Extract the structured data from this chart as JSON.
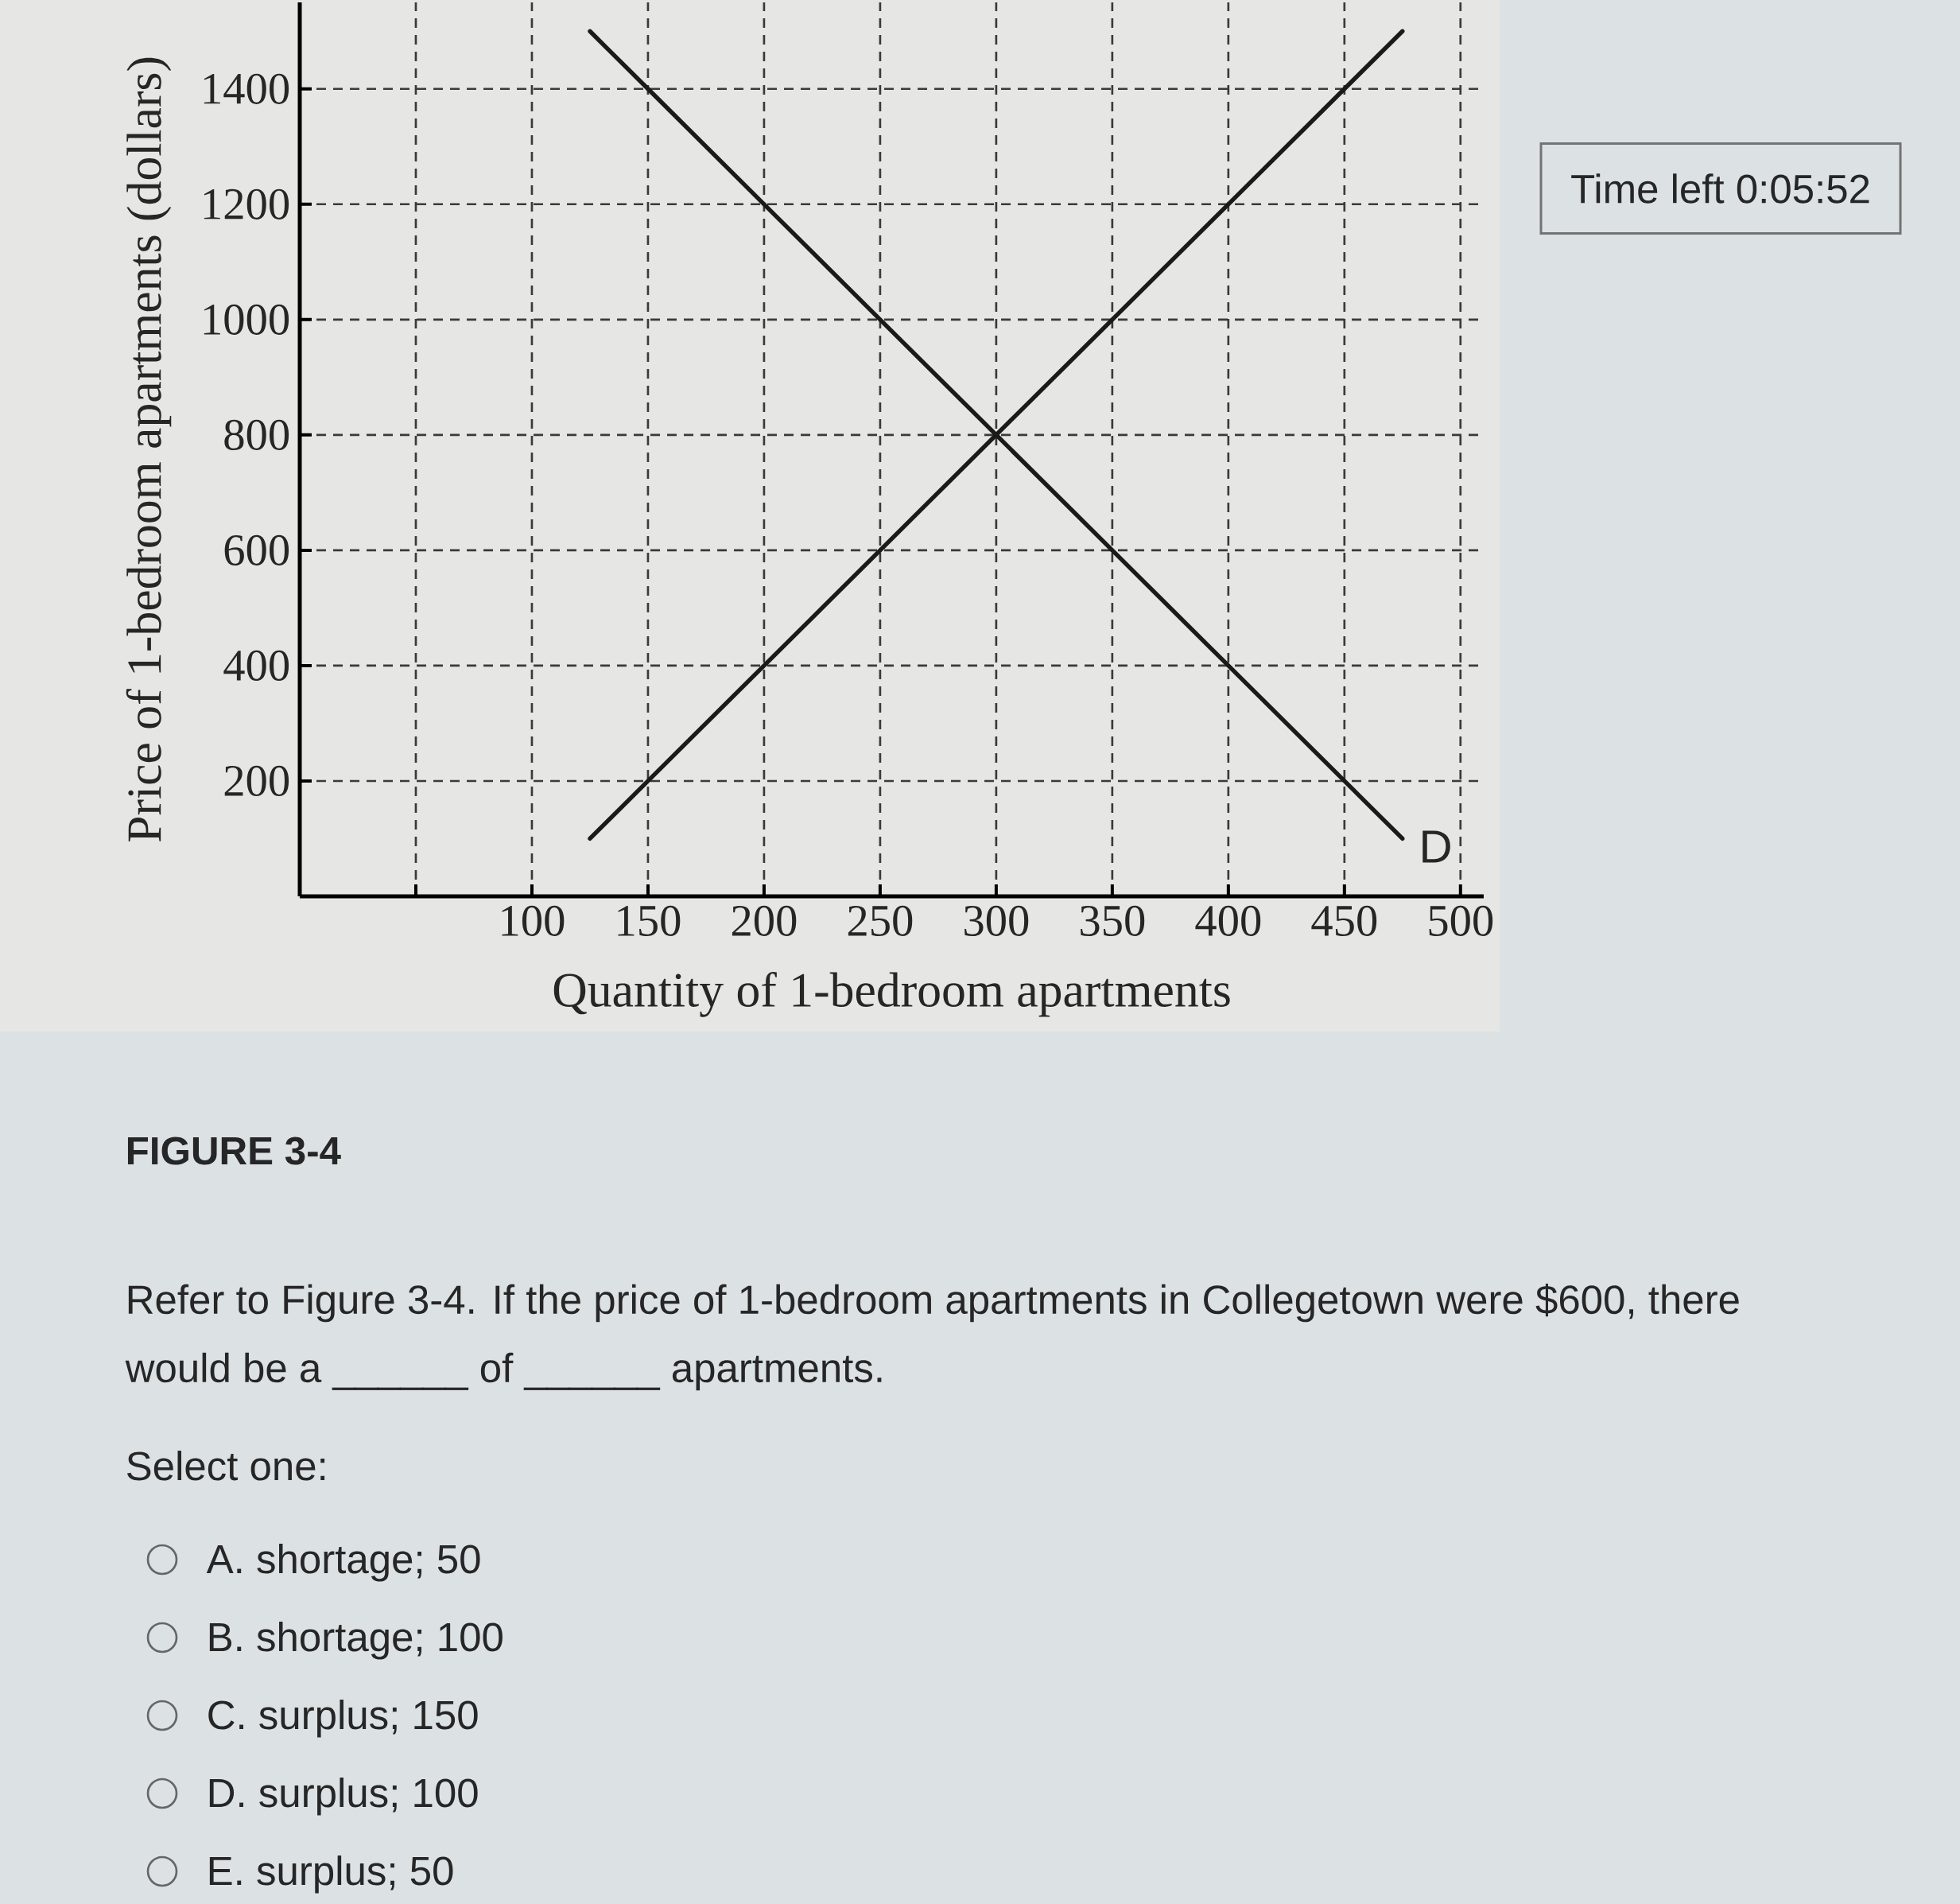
{
  "chart_data": {
    "type": "line",
    "xlabel": "Quantity of 1-bedroom apartments",
    "ylabel": "Price of 1-bedroom apartments (dollars)",
    "xlim": [
      0,
      510
    ],
    "ylim": [
      0,
      1550
    ],
    "xticks": [
      {
        "value": 50,
        "label": null
      },
      100,
      150,
      200,
      250,
      300,
      350,
      400,
      450,
      500
    ],
    "yticks": [
      200,
      400,
      600,
      800,
      1000,
      1200,
      1400
    ],
    "grid": true,
    "series": [
      {
        "color": "#1a1a1a",
        "x": [
          125,
          150,
          200,
          250,
          300,
          350,
          400,
          450,
          475
        ],
        "values": [
          100,
          200,
          400,
          600,
          800,
          1000,
          1200,
          1400,
          1500
        ]
      },
      {
        "name": "D",
        "color": "#1a1a1a",
        "x": [
          125,
          150,
          200,
          250,
          300,
          350,
          400,
          450,
          475
        ],
        "values": [
          1500,
          1400,
          1200,
          1000,
          800,
          600,
          400,
          200,
          100
        ]
      }
    ],
    "annotations": [
      "Time left 0:05:52",
      "FIGURE 3-4",
      "Refer to Figure 3-4. If the price of 1-bedroom apartments in Collegetown were $600, there would be a ______ of ______ apartments.",
      "Select one:",
      "A. shortage; 50",
      "B. shortage; 100",
      "C. surplus; 150",
      "D. surplus; 100",
      "E. surplus; 50"
    ]
  }
}
